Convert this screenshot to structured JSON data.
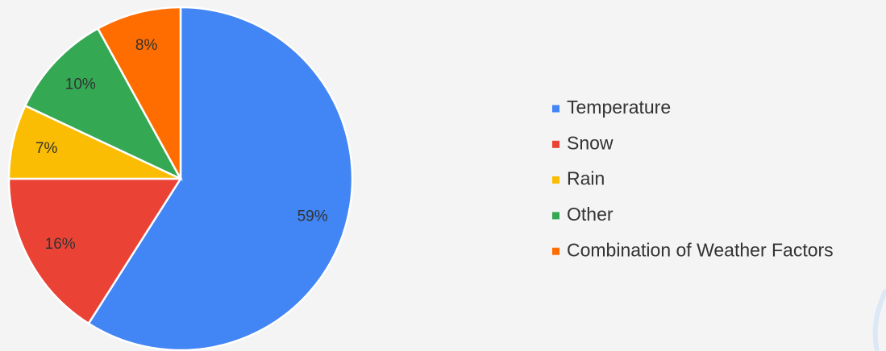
{
  "chart_data": {
    "type": "pie",
    "categories": [
      "Temperature",
      "Snow",
      "Rain",
      "Other",
      "Combination of Weather Factors"
    ],
    "values": [
      59,
      16,
      7,
      10,
      8
    ],
    "value_labels": [
      "59%",
      "16%",
      "7%",
      "10%",
      "8%"
    ],
    "colors": [
      "#4285f4",
      "#ea4335",
      "#fbbc04",
      "#34a853",
      "#ff6d01"
    ],
    "legend": "right"
  }
}
